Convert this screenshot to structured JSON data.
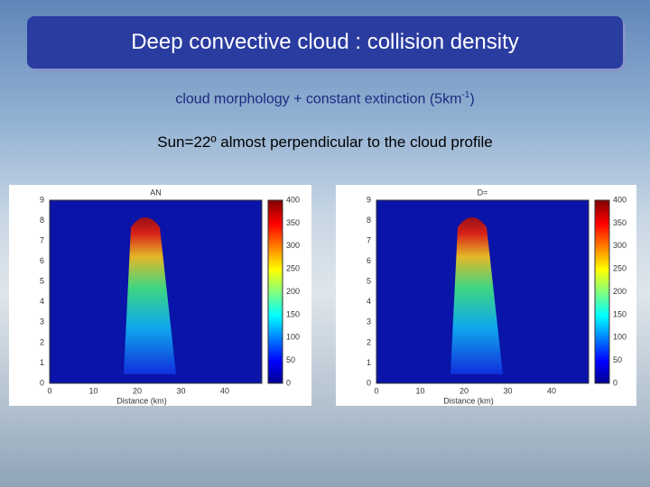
{
  "header": {
    "title": "Deep convective cloud : collision density"
  },
  "subtitle": {
    "text": "cloud morphology + constant extinction (5km",
    "superscript": "-1",
    "closing": ")"
  },
  "note": "Sun=22º almost perpendicular to the cloud profile",
  "figures": [
    {
      "title": "AN",
      "xlabel": "Distance (km)",
      "xticks": [
        "0",
        "10",
        "20",
        "30",
        "40"
      ],
      "yticks": [
        "0",
        "1",
        "2",
        "3",
        "4",
        "5",
        "6",
        "7",
        "8",
        "9"
      ],
      "colorbar_ticks": [
        "0",
        "50",
        "100",
        "150",
        "200",
        "250",
        "300",
        "350",
        "400"
      ]
    },
    {
      "title": "D=",
      "xlabel": "Distance (km)",
      "xticks": [
        "0",
        "10",
        "20",
        "30",
        "40"
      ],
      "yticks": [
        "0",
        "1",
        "2",
        "3",
        "4",
        "5",
        "6",
        "7",
        "8",
        "9"
      ],
      "colorbar_ticks": [
        "0",
        "50",
        "100",
        "150",
        "200",
        "250",
        "300",
        "350",
        "400"
      ]
    }
  ]
}
